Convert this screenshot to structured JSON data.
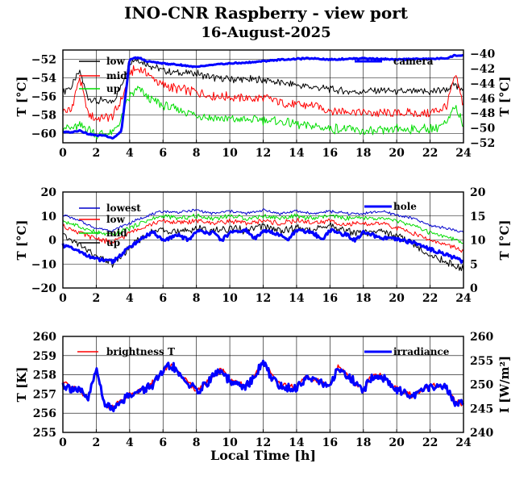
{
  "title": "INO-CNR Raspberry - view port",
  "subtitle": "16-August-2025",
  "chart_data": [
    {
      "type": "line",
      "xlabel": "",
      "ylabel": "T [°C]",
      "ylabel_right": "T [°C]",
      "xlim": [
        0,
        24
      ],
      "ylim": [
        -61,
        -51
      ],
      "ylim_right": [
        -52,
        -39.5
      ],
      "xticks": [
        0,
        2,
        4,
        6,
        8,
        10,
        12,
        14,
        16,
        18,
        20,
        22,
        24
      ],
      "yticks": [
        -52,
        -54,
        -56,
        -58,
        -60
      ],
      "yticks_right": [
        -40,
        -42,
        -44,
        -46,
        -48,
        -50,
        -52
      ],
      "grid": true,
      "legend": "top-left",
      "series": [
        {
          "name": "low",
          "color": "#000000",
          "axis": "left",
          "width": 1,
          "x": [
            0,
            0.5,
            1,
            1.5,
            2,
            2.5,
            3,
            3.5,
            4,
            4.5,
            5,
            6,
            7,
            8,
            9,
            10,
            11,
            12,
            13,
            14,
            15,
            16,
            17,
            18,
            19,
            20,
            21,
            22,
            23,
            23.5,
            24
          ],
          "values": [
            -55.5,
            -55,
            -53.3,
            -56,
            -56.5,
            -56.5,
            -56.5,
            -55,
            -52.2,
            -52,
            -52.5,
            -53.2,
            -53.5,
            -53.5,
            -54,
            -54.2,
            -54.2,
            -54.2,
            -54.5,
            -54.8,
            -55,
            -55.2,
            -55.5,
            -55.5,
            -55.3,
            -55.5,
            -55.5,
            -55.5,
            -55.2,
            -54.8,
            -55.5
          ]
        },
        {
          "name": "mid",
          "color": "#ff0000",
          "axis": "left",
          "width": 1,
          "x": [
            0,
            0.5,
            1,
            1.5,
            2,
            2.5,
            3,
            3.5,
            4,
            4.5,
            5,
            6,
            7,
            8,
            9,
            10,
            11,
            12,
            13,
            14,
            15,
            16,
            17,
            18,
            19,
            20,
            21,
            22,
            23,
            23.5,
            24
          ],
          "values": [
            -57.5,
            -57.5,
            -54,
            -57.8,
            -58.5,
            -58.3,
            -58,
            -56.5,
            -53.5,
            -53,
            -53.5,
            -54.8,
            -55.3,
            -55.5,
            -56,
            -56,
            -56.2,
            -56.2,
            -56.5,
            -57,
            -57,
            -57.5,
            -57.5,
            -57.8,
            -57.8,
            -57.8,
            -57.8,
            -57.8,
            -57,
            -53.8,
            -57
          ]
        },
        {
          "name": "up",
          "color": "#00dd00",
          "axis": "left",
          "width": 1,
          "x": [
            0,
            0.5,
            1,
            1.5,
            2,
            2.5,
            3,
            3.5,
            4,
            4.5,
            5,
            6,
            7,
            8,
            9,
            10,
            11,
            12,
            13,
            14,
            15,
            16,
            17,
            18,
            19,
            20,
            21,
            22,
            23,
            23.5,
            24
          ],
          "values": [
            -59.2,
            -59.5,
            -59.2,
            -59.5,
            -60.2,
            -60,
            -60,
            -58.5,
            -56,
            -55.2,
            -56,
            -57,
            -57.5,
            -58,
            -58.3,
            -58.5,
            -58.5,
            -58.5,
            -58.8,
            -59,
            -59.2,
            -59.5,
            -59.5,
            -59.8,
            -59.8,
            -59.5,
            -59.5,
            -59.5,
            -59,
            -57,
            -59
          ]
        },
        {
          "name": "camera",
          "color": "#0000ff",
          "axis": "right",
          "width": 3,
          "x": [
            0,
            0.5,
            1,
            1.5,
            2,
            2.5,
            3,
            3.5,
            4,
            4.5,
            5,
            6,
            7,
            8,
            9,
            10,
            11,
            12,
            13,
            14,
            15,
            16,
            17,
            18,
            19,
            20,
            21,
            22,
            23,
            23.5,
            24
          ],
          "values": [
            -50.5,
            -50.6,
            -50.3,
            -50.8,
            -51,
            -51,
            -51.4,
            -50.5,
            -40.8,
            -40.5,
            -41,
            -41.3,
            -41.5,
            -41.8,
            -41.5,
            -41.3,
            -41.2,
            -41,
            -40.8,
            -40.7,
            -40.6,
            -40.8,
            -40.7,
            -40.6,
            -40.7,
            -40.8,
            -40.7,
            -40.7,
            -40.6,
            -40.2,
            -40.3
          ]
        }
      ]
    },
    {
      "type": "line",
      "xlabel": "",
      "ylabel": "T [°C]",
      "ylabel_right": "T [°C]",
      "xlim": [
        0,
        24
      ],
      "ylim": [
        -20,
        20
      ],
      "ylim_right": [
        0,
        20
      ],
      "xticks": [
        0,
        2,
        4,
        6,
        8,
        10,
        12,
        14,
        16,
        18,
        20,
        22,
        24
      ],
      "yticks": [
        20,
        10,
        0,
        -10,
        -20
      ],
      "yticks_right": [
        20,
        15,
        10,
        5,
        0
      ],
      "grid": true,
      "legend": "top-left",
      "series": [
        {
          "name": "lowest",
          "color": "#0000cc",
          "axis": "left",
          "width": 1,
          "x": [
            0,
            1,
            2,
            3,
            4,
            5,
            6,
            7,
            8,
            9,
            10,
            11,
            12,
            13,
            14,
            15,
            16,
            17,
            18,
            19,
            20,
            21,
            22,
            23,
            24
          ],
          "values": [
            10.5,
            8,
            5,
            4,
            7,
            10,
            12,
            11.5,
            12.5,
            11,
            12,
            11,
            12.5,
            11,
            12,
            11,
            12,
            11,
            11,
            12,
            10.5,
            9,
            6,
            5,
            3
          ]
        },
        {
          "name": "low",
          "color": "#ff0000",
          "axis": "left",
          "width": 1,
          "x": [
            0,
            1,
            2,
            3,
            4,
            5,
            6,
            7,
            8,
            9,
            10,
            11,
            12,
            13,
            14,
            15,
            16,
            17,
            18,
            19,
            20,
            21,
            22,
            23,
            24
          ],
          "values": [
            6,
            3,
            0.5,
            -1,
            3,
            6,
            8,
            7,
            8,
            7,
            8,
            7,
            8,
            7,
            8,
            7,
            8,
            6.5,
            6.5,
            7,
            5,
            3,
            0,
            -2,
            -5
          ]
        },
        {
          "name": "mid",
          "color": "#00dd00",
          "axis": "left",
          "width": 1,
          "x": [
            0,
            1,
            2,
            3,
            4,
            5,
            6,
            7,
            8,
            9,
            10,
            11,
            12,
            13,
            14,
            15,
            16,
            17,
            18,
            19,
            20,
            21,
            22,
            23,
            24
          ],
          "values": [
            8,
            5.5,
            3,
            2,
            5,
            8,
            10,
            9,
            10,
            9,
            10,
            9,
            10,
            9,
            10,
            9,
            10,
            9,
            9,
            9,
            8,
            6,
            3,
            1,
            -1
          ]
        },
        {
          "name": "up",
          "color": "#000000",
          "axis": "left",
          "width": 1,
          "x": [
            0,
            1,
            2,
            3,
            4,
            5,
            6,
            7,
            8,
            9,
            10,
            11,
            12,
            13,
            14,
            15,
            16,
            17,
            18,
            19,
            20,
            21,
            22,
            23,
            24
          ],
          "values": [
            2,
            -2,
            -7,
            -10,
            -3,
            2,
            5,
            3,
            5,
            4,
            5,
            4,
            6,
            4,
            5,
            4,
            6,
            3.5,
            3,
            4,
            2,
            -2,
            -6,
            -9,
            -12
          ]
        },
        {
          "name": "hole",
          "color": "#0000ff",
          "axis": "right",
          "width": 3,
          "x": [
            0,
            1,
            2,
            3,
            4,
            5,
            5.5,
            6,
            7,
            7.5,
            8,
            9,
            9.5,
            10,
            11,
            11.5,
            12,
            13,
            13.5,
            14,
            15,
            15.5,
            16,
            17,
            17.5,
            18,
            19,
            20,
            21,
            22,
            23,
            24
          ],
          "values": [
            9,
            7.5,
            6,
            5.5,
            8.5,
            11,
            11.5,
            10,
            11,
            10,
            11.8,
            11.5,
            10,
            11.5,
            12,
            10.2,
            12,
            11,
            10,
            12,
            11.5,
            10,
            12,
            11,
            10,
            11.5,
            10.5,
            10,
            9.5,
            8,
            7,
            5.5
          ]
        }
      ]
    },
    {
      "type": "line",
      "xlabel": "Local Time [h]",
      "ylabel": "T [K]",
      "ylabel_right": "I [W/m²]",
      "xlim": [
        0,
        24
      ],
      "ylim": [
        255,
        260
      ],
      "ylim_right": [
        240,
        260
      ],
      "xticks": [
        0,
        2,
        4,
        6,
        8,
        10,
        12,
        14,
        16,
        18,
        20,
        22,
        24
      ],
      "yticks": [
        260,
        259,
        258,
        257,
        256,
        255
      ],
      "yticks_right": [
        260,
        255,
        250,
        245,
        240
      ],
      "grid": true,
      "legend": "top",
      "series": [
        {
          "name": "brightness T",
          "color": "#ff0000",
          "axis": "left",
          "width": 1.5,
          "x": [
            0,
            0.5,
            1,
            1.5,
            2,
            2.5,
            3,
            3.5,
            4,
            5,
            5.5,
            6,
            6.5,
            7,
            8,
            8.5,
            9,
            9.5,
            10,
            11,
            11.5,
            12,
            12.5,
            13,
            14,
            14.5,
            15,
            16,
            16.5,
            17,
            18,
            18.5,
            19,
            20,
            21,
            22,
            22.5,
            23,
            23.5,
            24
          ],
          "values": [
            257.6,
            257.4,
            257.2,
            256.8,
            258.3,
            256.5,
            256.3,
            256.7,
            257,
            257.3,
            257.7,
            258.2,
            258.6,
            258,
            257.2,
            257.5,
            258,
            258.3,
            257.7,
            257.4,
            258,
            258.7,
            258,
            257.5,
            257.3,
            257.9,
            257.8,
            257.4,
            258.5,
            258,
            257.2,
            257.9,
            258,
            257.3,
            256.9,
            257.5,
            257.4,
            257.3,
            256.6,
            256.5
          ]
        },
        {
          "name": "irradiance",
          "color": "#0000ff",
          "axis": "right",
          "width": 3,
          "x": [
            0,
            0.5,
            1,
            1.5,
            2,
            2.5,
            3,
            3.5,
            4,
            5,
            5.5,
            6,
            6.5,
            7,
            8,
            8.5,
            9,
            9.5,
            10,
            11,
            11.5,
            12,
            12.5,
            13,
            14,
            14.5,
            15,
            16,
            16.5,
            17,
            18,
            18.5,
            19,
            20,
            21,
            22,
            22.5,
            23,
            23.5,
            24
          ],
          "values": [
            250,
            249.3,
            248.5,
            247,
            253,
            246,
            245,
            246.8,
            247.8,
            249,
            250.5,
            252.5,
            254,
            251.7,
            248.6,
            249.8,
            251.8,
            252.8,
            250.5,
            249.5,
            251.8,
            254.5,
            251.7,
            249.8,
            249,
            251.5,
            251,
            249.5,
            253.8,
            251.8,
            248.6,
            251.5,
            251.8,
            249,
            247.5,
            249.8,
            249.5,
            249,
            246.3,
            245.8
          ]
        }
      ]
    }
  ]
}
